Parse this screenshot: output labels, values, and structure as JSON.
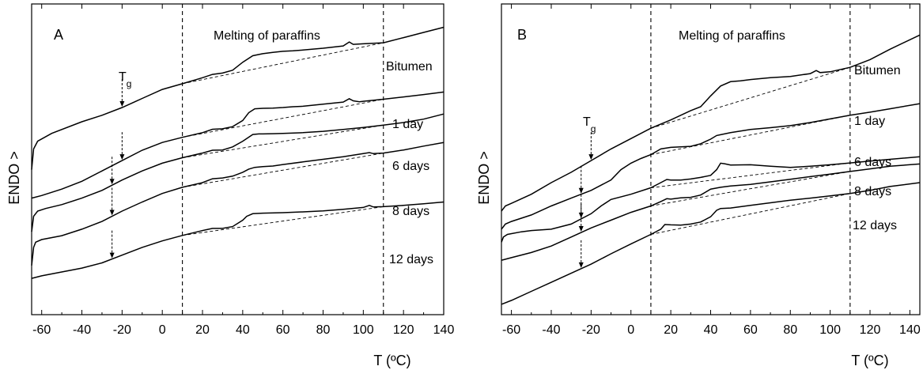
{
  "chart_data": [
    {
      "type": "line",
      "panel_label": "A",
      "xlabel": "T (ºC)",
      "ylabel": "ENDO >",
      "xlim": [
        -65,
        140
      ],
      "x_ticks": [
        -60,
        -40,
        -20,
        0,
        20,
        40,
        60,
        80,
        100,
        120,
        140
      ],
      "y_ticks_labeled": false,
      "region_label": "Melting of paraffins",
      "region_bounds": [
        10,
        110
      ],
      "tg_label": "T",
      "tg_subscript": "g",
      "series": [
        {
          "name": "Bitumen",
          "tg": -20,
          "x": [
            -65,
            -64,
            -62,
            -55,
            -40,
            -30,
            -20,
            -10,
            0,
            10,
            20,
            25,
            30,
            35,
            40,
            45,
            50,
            55,
            60,
            65,
            70,
            80,
            90,
            93,
            95,
            100,
            110,
            120,
            130,
            140
          ],
          "y": [
            56,
            64,
            67,
            70,
            74.5,
            77,
            80,
            83.5,
            87,
            89.2,
            91.5,
            92.8,
            93.3,
            94.4,
            97.5,
            100,
            100.8,
            101.3,
            101.7,
            101.9,
            102.2,
            102.9,
            103.8,
            105.3,
            104.4,
            104.6,
            105,
            107,
            109,
            111
          ]
        },
        {
          "name": "1 day",
          "tg": -20,
          "x": [
            -65,
            -60,
            -50,
            -40,
            -30,
            -20,
            -10,
            0,
            10,
            20,
            25,
            30,
            35,
            40,
            43,
            46,
            50,
            55,
            60,
            65,
            70,
            80,
            90,
            93,
            95,
            98,
            100,
            110,
            120,
            130,
            140
          ],
          "y": [
            45,
            46,
            48.5,
            51.5,
            55.5,
            59.5,
            63.5,
            66.5,
            68.5,
            70.3,
            71.6,
            71.8,
            72.6,
            75,
            78,
            79.5,
            79.7,
            79.8,
            80,
            80.3,
            80.5,
            81.3,
            82.1,
            83.4,
            82.6,
            82.2,
            82.4,
            83.2,
            84.1,
            85,
            86
          ]
        },
        {
          "name": "6 days",
          "tg": -25,
          "x": [
            -65,
            -64,
            -62,
            -58,
            -50,
            -40,
            -30,
            -20,
            -10,
            0,
            10,
            20,
            25,
            30,
            35,
            40,
            45,
            48,
            50,
            55,
            60,
            70,
            80,
            90,
            100,
            110,
            120,
            130,
            140
          ],
          "y": [
            32,
            38,
            40,
            41,
            42.5,
            45,
            48,
            52,
            55.5,
            58.5,
            60.6,
            62.4,
            63.5,
            63.6,
            64.8,
            67,
            69.6,
            69.8,
            69.8,
            69.9,
            70,
            70.3,
            70.8,
            71.5,
            72.3,
            73.2,
            74.2,
            75.5,
            77.5
          ]
        },
        {
          "name": "8 days",
          "tg": -25,
          "x": [
            -65,
            -64,
            -63,
            -60,
            -50,
            -40,
            -30,
            -20,
            -10,
            0,
            10,
            20,
            25,
            30,
            35,
            40,
            43,
            46,
            50,
            55,
            60,
            70,
            80,
            90,
            100,
            103,
            105,
            110,
            120,
            130,
            140
          ],
          "y": [
            19,
            26,
            28,
            29,
            30.5,
            33,
            36,
            40,
            43.5,
            46.8,
            49.2,
            51,
            52.5,
            52.8,
            53.5,
            55,
            56.2,
            56.9,
            57.2,
            57.4,
            58,
            59,
            60,
            61,
            62.2,
            62.6,
            62.2,
            62.4,
            63.6,
            65.1,
            66.5
          ]
        },
        {
          "name": "12 days",
          "tg": -25,
          "x": [
            -65,
            -60,
            -50,
            -40,
            -30,
            -20,
            -10,
            0,
            10,
            20,
            25,
            30,
            35,
            40,
            42,
            45,
            50,
            60,
            70,
            80,
            90,
            100,
            103,
            105,
            110,
            120,
            130,
            140
          ],
          "y": [
            14,
            15,
            16.5,
            18,
            20,
            23,
            26,
            28.5,
            30.6,
            32.5,
            33.3,
            33.3,
            34,
            36.5,
            38,
            39,
            39.2,
            39.4,
            39.7,
            40.1,
            40.7,
            41.4,
            42.2,
            41.6,
            41.7,
            42.2,
            42.8,
            43.5
          ]
        }
      ]
    },
    {
      "type": "line",
      "panel_label": "B",
      "xlabel": "T (ºC)",
      "ylabel": "ENDO >",
      "xlim": [
        -65,
        145
      ],
      "x_ticks": [
        -60,
        -40,
        -20,
        0,
        20,
        40,
        60,
        80,
        100,
        120,
        140
      ],
      "y_ticks_labeled": false,
      "region_label": "Melting of paraffins",
      "region_bounds": [
        10,
        110
      ],
      "tg_label": "T",
      "tg_subscript": "g",
      "series": [
        {
          "name": "Bitumen",
          "tg": -20,
          "x": [
            -65,
            -63,
            -60,
            -50,
            -40,
            -30,
            -20,
            -10,
            0,
            10,
            20,
            30,
            35,
            40,
            45,
            50,
            55,
            60,
            70,
            80,
            90,
            93,
            95,
            100,
            110,
            120,
            130,
            145
          ],
          "y": [
            40,
            42,
            43,
            46.5,
            51,
            55,
            59.5,
            64,
            68,
            72,
            75.2,
            78.8,
            80.3,
            84.5,
            88.3,
            90,
            90.3,
            90.8,
            91.5,
            92,
            93.1,
            94.3,
            93.5,
            93.8,
            95.5,
            98.5,
            102.5,
            108
          ]
        },
        {
          "name": "1 day",
          "tg": -25,
          "x": [
            -65,
            -63,
            -60,
            -50,
            -40,
            -30,
            -20,
            -10,
            -5,
            0,
            5,
            10,
            15,
            20,
            30,
            35,
            40,
            43,
            45,
            50,
            60,
            70,
            80,
            90,
            100,
            110,
            120,
            130,
            145
          ],
          "y": [
            33,
            35,
            36,
            38.5,
            42,
            45,
            48,
            52,
            56,
            58.5,
            60.3,
            61.8,
            64,
            64.6,
            65,
            66,
            67.8,
            69.2,
            69.5,
            70.3,
            71.5,
            72.2,
            73,
            74.2,
            75.6,
            77,
            78.2,
            79.5,
            81.5
          ]
        },
        {
          "name": "6 days",
          "tg": -25,
          "x": [
            -65,
            -64,
            -62,
            -55,
            -50,
            -40,
            -30,
            -20,
            -15,
            -10,
            0,
            10,
            15,
            18,
            20,
            25,
            30,
            35,
            40,
            43,
            45,
            47,
            50,
            60,
            70,
            80,
            90,
            100,
            110,
            120,
            130,
            145
          ],
          "y": [
            28,
            30,
            31,
            32,
            32.5,
            33,
            35,
            39,
            42,
            44.5,
            46.5,
            49,
            51,
            52.2,
            52,
            52,
            52.4,
            53,
            53.8,
            56,
            58.5,
            58.3,
            57.8,
            57.9,
            57.3,
            56.9,
            57.3,
            57.9,
            58.6,
            59.3,
            60,
            61
          ]
        },
        {
          "name": "8 days",
          "tg": -25,
          "x": [
            -65,
            -60,
            -50,
            -40,
            -30,
            -20,
            -10,
            0,
            10,
            15,
            18,
            20,
            25,
            30,
            35,
            40,
            45,
            50,
            60,
            70,
            80,
            90,
            100,
            110,
            120,
            130,
            145
          ],
          "y": [
            21,
            22,
            24,
            26.5,
            30,
            33.5,
            36.5,
            39.5,
            42,
            43.7,
            44.8,
            44.6,
            45.1,
            45.3,
            46.2,
            48.5,
            49.2,
            49.7,
            50.3,
            51.3,
            52.3,
            53.3,
            54.3,
            55.3,
            56.3,
            57.3,
            58.2
          ]
        },
        {
          "name": "12 days",
          "tg": -25,
          "x": [
            -65,
            -60,
            -50,
            -40,
            -30,
            -20,
            -10,
            0,
            10,
            15,
            17,
            20,
            25,
            30,
            35,
            40,
            43,
            45,
            48,
            50,
            60,
            70,
            80,
            90,
            100,
            110,
            120,
            130,
            145
          ],
          "y": [
            4,
            5.5,
            9,
            12.5,
            16,
            19.5,
            23.5,
            27.3,
            31,
            33,
            34.8,
            34.7,
            34.6,
            35,
            35.8,
            37.8,
            40.3,
            41,
            41.1,
            41.2,
            42.2,
            43.2,
            44.2,
            45,
            45.9,
            46.8,
            48,
            49.5,
            51
          ]
        }
      ]
    }
  ]
}
